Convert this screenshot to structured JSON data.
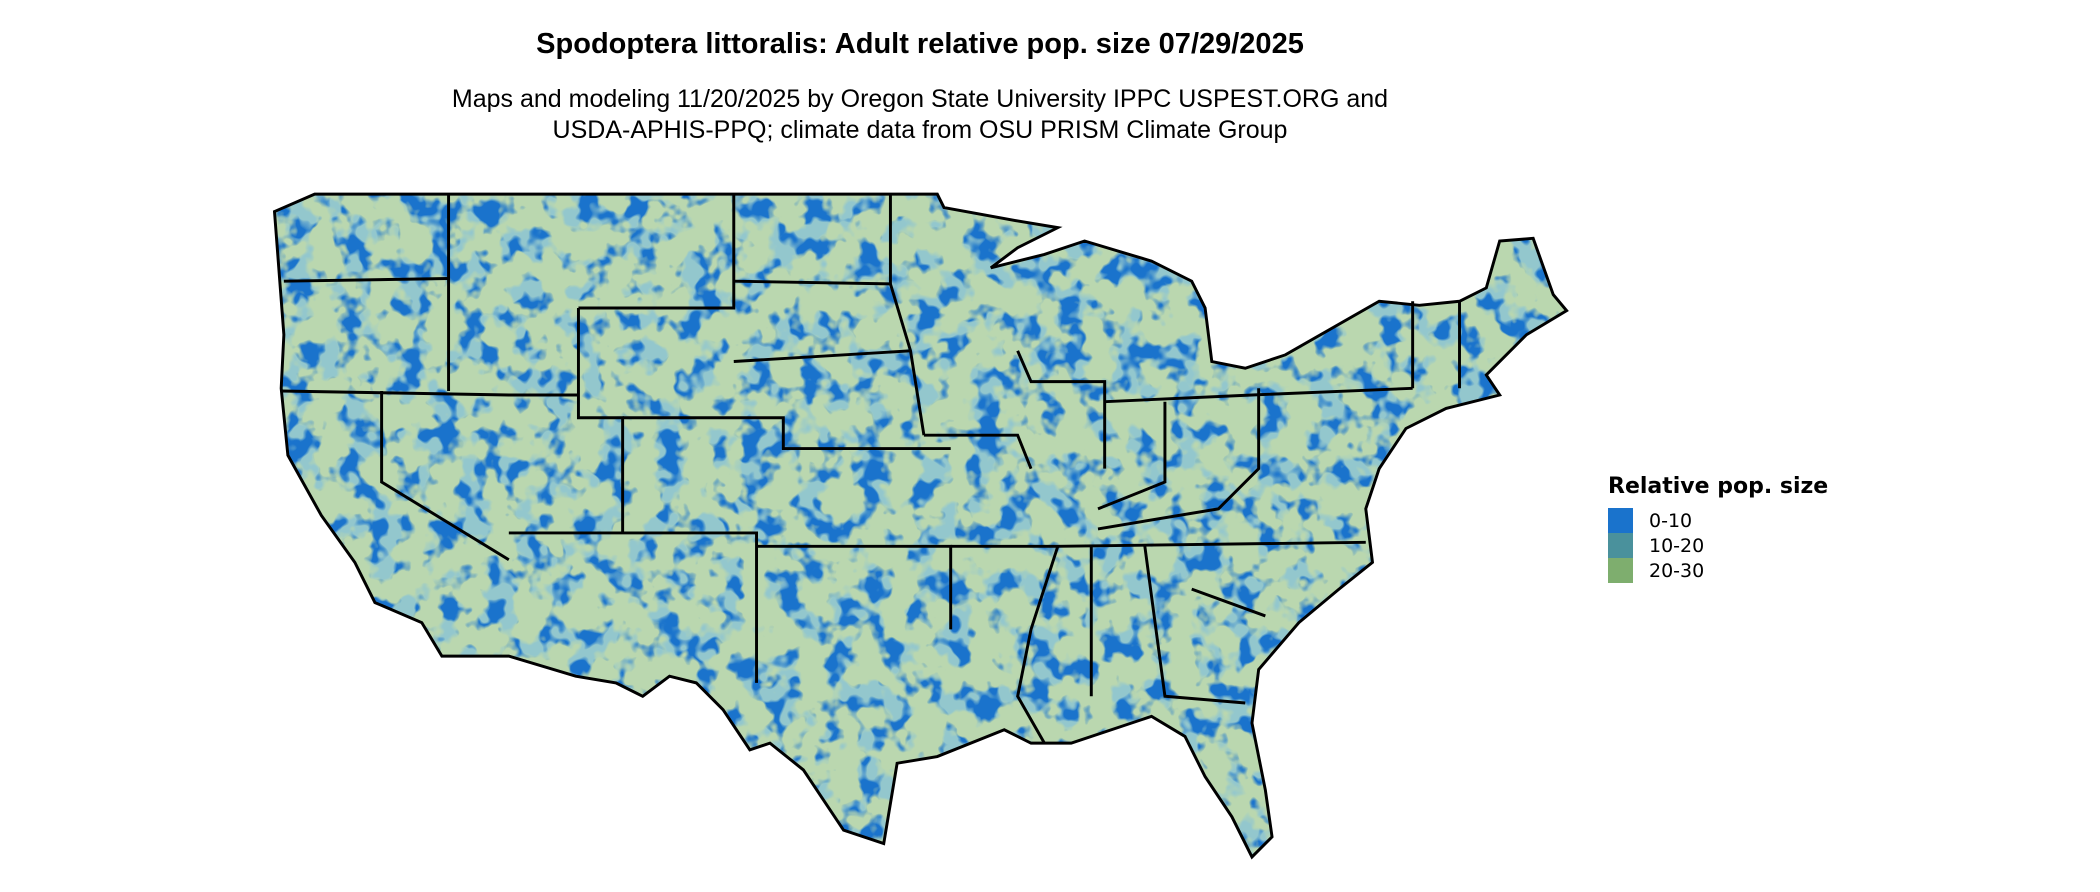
{
  "title": "Spodoptera littoralis: Adult relative pop. size 07/29/2025",
  "subtitle_lines": [
    "Maps and modeling 11/20/2025 by Oregon State University IPPC USPEST.ORG and",
    "USDA-APHIS-PPQ; climate data from OSU PRISM Climate Group"
  ],
  "map": {
    "region": "Contiguous United States",
    "borders": "state"
  },
  "legend": {
    "title": "Relative pop. size",
    "items": [
      {
        "label": "0-10",
        "color": "#1a73cc"
      },
      {
        "label": "10-20",
        "color": "#4a919c"
      },
      {
        "label": "20-30",
        "color": "#7eae6e"
      }
    ]
  }
}
